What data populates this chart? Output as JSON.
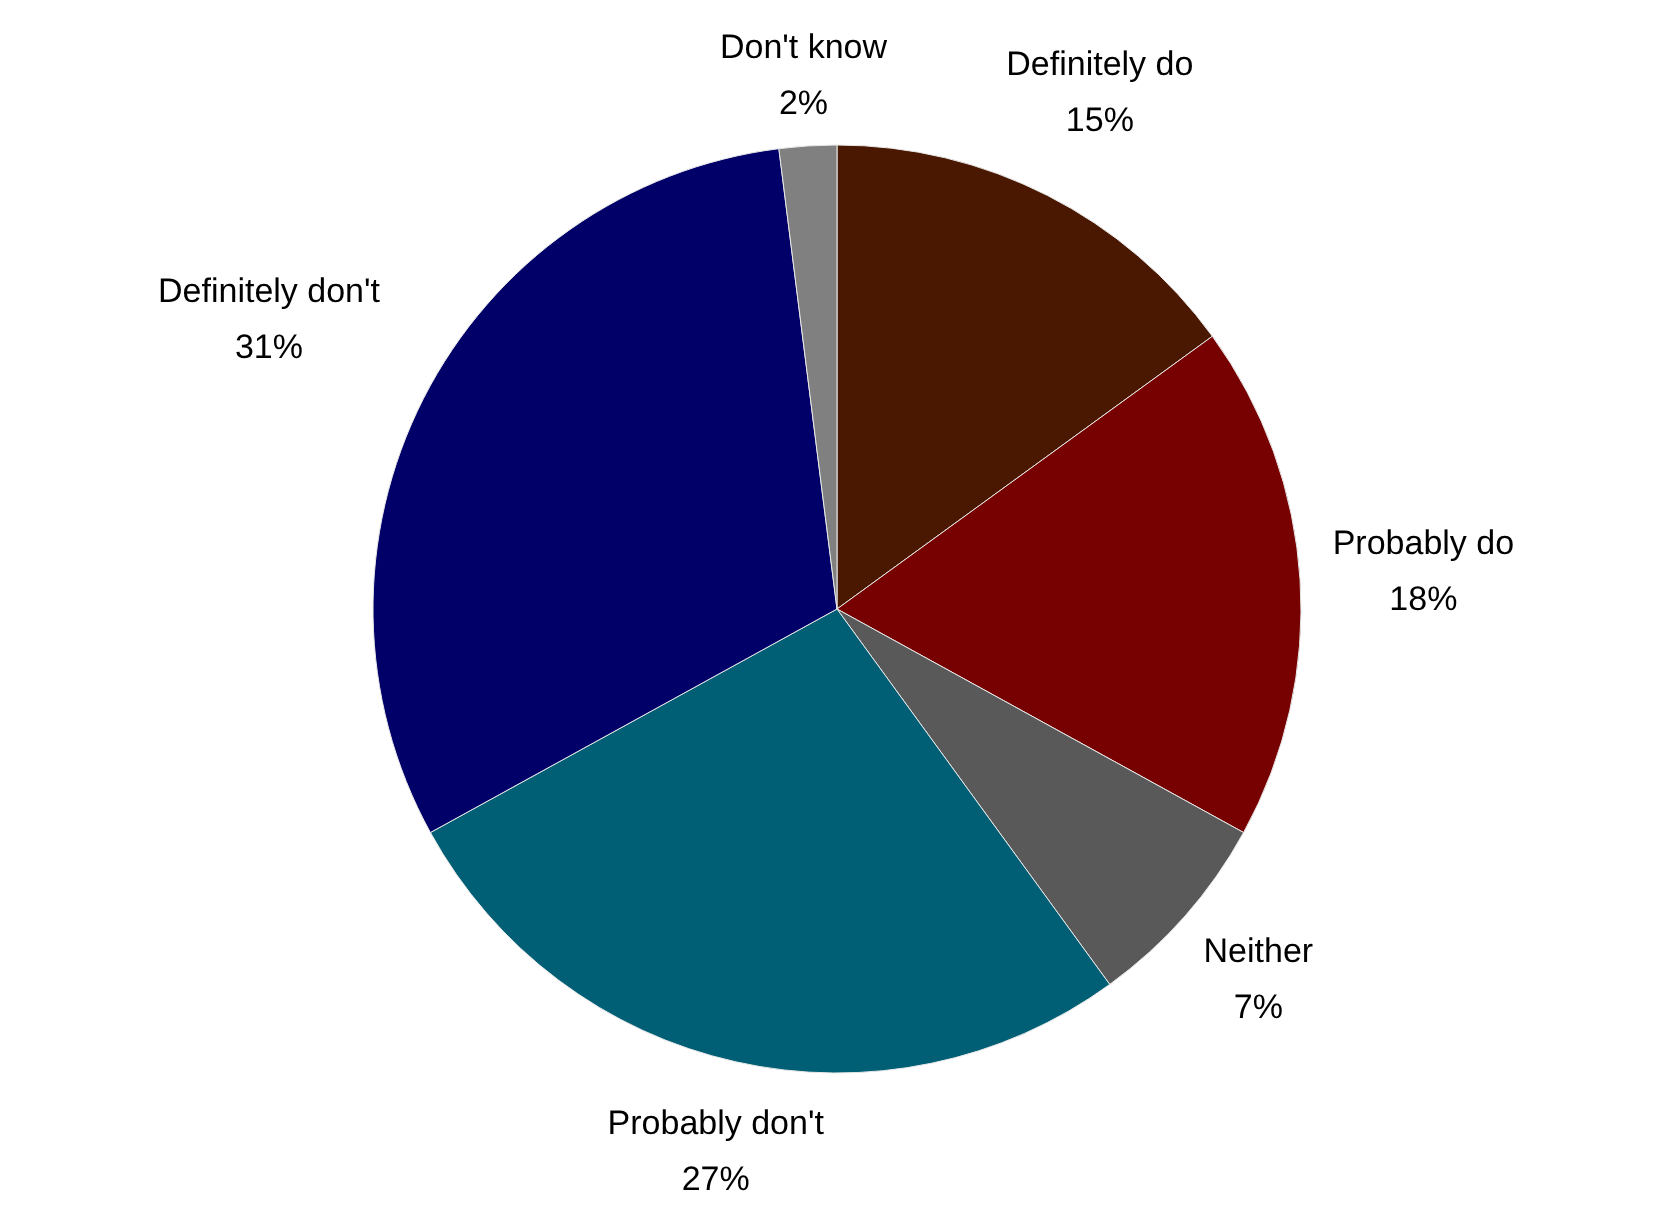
{
  "chart_data": {
    "type": "pie",
    "categories": [
      "Definitely do",
      "Probably do",
      "Neither",
      "Probably don't",
      "Definitely don't",
      "Don't know"
    ],
    "values": [
      15,
      18,
      7,
      27,
      31,
      2
    ],
    "colors": [
      "#4a1800",
      "#770000",
      "#595959",
      "#005f75",
      "#000068",
      "#808080"
    ],
    "value_labels": [
      "15%",
      "18%",
      "7%",
      "27%",
      "31%",
      "2%"
    ]
  }
}
